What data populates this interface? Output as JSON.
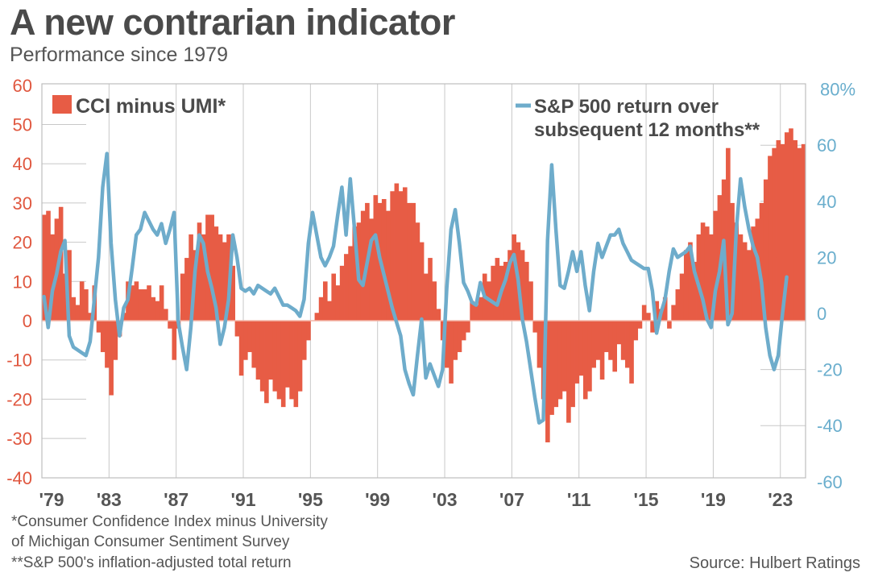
{
  "title": "A new contrarian indicator",
  "subtitle": "Performance since 1979",
  "footnotes": [
    "*Consumer Confidence Index minus University",
    "of Michigan Consumer Sentiment Survey",
    "**S&P 500's inflation-adjusted total return"
  ],
  "source": "Source: Hulbert Ratings",
  "colors": {
    "bar": "#e75c45",
    "line": "#6eaccb",
    "left_axis": "#e0573f",
    "right_axis": "#6aaecd",
    "text": "#4a4a4a",
    "grid": "#c8c8c8"
  },
  "chart_data": {
    "type": "bar+line",
    "title": "A new contrarian indicator",
    "x_ticks": [
      "'79",
      "'83",
      "'87",
      "'91",
      "'95",
      "'99",
      "'03",
      "'07",
      "'11",
      "'15",
      "'19",
      "'23"
    ],
    "x_tick_years": [
      1979,
      1983,
      1987,
      1991,
      1995,
      1999,
      2003,
      2007,
      2011,
      2015,
      2019,
      2023
    ],
    "xlim": [
      1979,
      2024.5
    ],
    "left_axis": {
      "ticks": [
        "60",
        "50",
        "40",
        "30",
        "20",
        "10",
        "0",
        "-10",
        "-20",
        "-30",
        "-40"
      ],
      "tick_values": [
        60,
        50,
        40,
        30,
        20,
        10,
        0,
        -10,
        -20,
        -30,
        -40
      ],
      "ylim": [
        -40,
        60
      ]
    },
    "right_axis": {
      "ticks": [
        "80%",
        "60",
        "40",
        "20",
        "0",
        "-20",
        "-40",
        "-60"
      ],
      "tick_values": [
        80,
        60,
        40,
        20,
        0,
        -20,
        -40,
        -60
      ],
      "ylim": [
        -60,
        80
      ]
    },
    "legend": {
      "bars": "CCI minus UMI*",
      "line_1": "S&P 500 return over",
      "line_2": "subsequent 12 months**"
    },
    "series": [
      {
        "name": "CCI minus UMI*",
        "kind": "bar",
        "axis": "left",
        "start": 1979,
        "step": 0.25,
        "values": [
          27,
          28,
          22,
          26,
          29,
          12,
          18,
          6,
          4,
          10,
          8,
          2,
          9,
          -3,
          -8,
          -12,
          -19,
          -10,
          -4,
          2,
          10,
          9,
          10,
          8,
          8,
          9,
          6,
          5,
          9,
          3,
          -2,
          -10,
          -2,
          12,
          16,
          22,
          18,
          25,
          22,
          27,
          27,
          24,
          22,
          20,
          22,
          14,
          -4,
          -14,
          -10,
          -8,
          -12,
          -15,
          -18,
          -21,
          -15,
          -18,
          -20,
          -22,
          -17,
          -20,
          -22,
          -18,
          -10,
          -5,
          0,
          2,
          6,
          10,
          5,
          12,
          9,
          14,
          17,
          19,
          24,
          25,
          28,
          30,
          26,
          32,
          30,
          31,
          28,
          33,
          35,
          33,
          34,
          30,
          30,
          25,
          20,
          12,
          16,
          10,
          3,
          -5,
          -12,
          -16,
          -10,
          -8,
          -5,
          -3,
          5,
          4,
          6,
          12,
          10,
          14,
          16,
          14,
          15,
          18,
          22,
          20,
          18,
          15,
          10,
          -3,
          -12,
          -20,
          -31,
          -24,
          -22,
          -20,
          -18,
          -26,
          -22,
          -16,
          -14,
          -20,
          -18,
          -12,
          -10,
          -15,
          -8,
          -10,
          -13,
          -6,
          -10,
          -12,
          -16,
          -5,
          -2,
          4,
          2,
          -3,
          5,
          3,
          6,
          -2,
          4,
          8,
          12,
          18,
          20,
          15,
          22,
          25,
          24,
          22,
          28,
          32,
          36,
          44,
          30,
          25,
          22,
          20,
          18,
          24,
          26,
          30,
          36,
          42,
          44,
          46,
          45,
          48,
          49,
          46,
          44,
          45
        ]
      },
      {
        "name": "S&P 500 return over subsequent 12 months**",
        "kind": "line",
        "axis": "right",
        "unit": "%",
        "start": 1979,
        "step": 0.25,
        "values": [
          6,
          -5,
          8,
          14,
          22,
          26,
          -8,
          -12,
          -13,
          -14,
          -15,
          -10,
          5,
          20,
          45,
          57,
          25,
          5,
          -8,
          2,
          5,
          16,
          28,
          30,
          36,
          33,
          30,
          28,
          32,
          25,
          30,
          36,
          -3,
          -12,
          -20,
          -5,
          15,
          28,
          25,
          15,
          9,
          2,
          -11,
          -5,
          5,
          28,
          20,
          9,
          8,
          9,
          7,
          10,
          9,
          8,
          7,
          9,
          6,
          3,
          3,
          2,
          1,
          -1,
          5,
          25,
          36,
          28,
          20,
          17,
          20,
          24,
          35,
          45,
          28,
          48,
          30,
          12,
          10,
          18,
          26,
          28,
          20,
          14,
          8,
          2,
          -3,
          -8,
          -20,
          -25,
          -29,
          -15,
          -2,
          -23,
          -18,
          -22,
          -26,
          -20,
          9,
          30,
          37,
          25,
          11,
          8,
          4,
          3,
          11,
          6,
          5,
          4,
          3,
          8,
          12,
          18,
          21,
          12,
          -2,
          -10,
          -20,
          -30,
          -39,
          -38,
          26,
          53,
          30,
          10,
          9,
          15,
          22,
          15,
          22,
          10,
          1,
          15,
          25,
          20,
          24,
          28,
          28,
          30,
          25,
          22,
          19,
          18,
          17,
          16,
          16,
          8,
          -7,
          0,
          5,
          15,
          23,
          20,
          21,
          22,
          24,
          15,
          10,
          5,
          -2,
          -5,
          8,
          15,
          26,
          -4,
          0,
          30,
          48,
          38,
          30,
          24,
          20,
          11,
          -5,
          -15,
          -20,
          -15,
          0,
          13
        ]
      }
    ]
  }
}
